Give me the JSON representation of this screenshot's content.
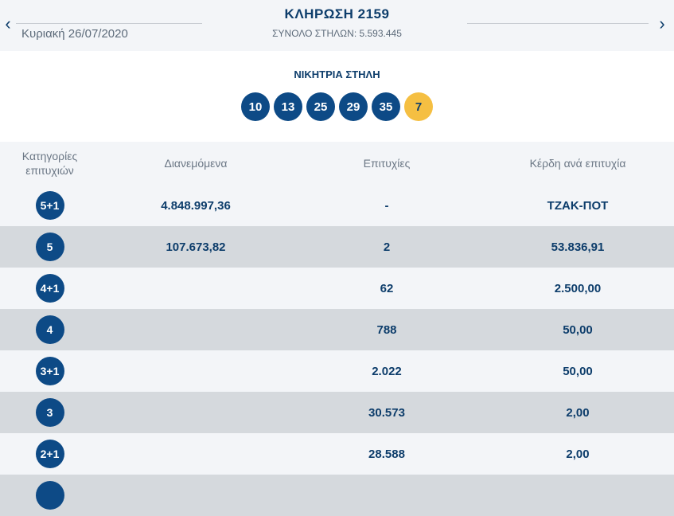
{
  "header": {
    "prev_icon": "chevron-left-icon",
    "next_icon": "chevron-right-icon",
    "prev_glyph": "‹",
    "next_glyph": "›",
    "date": "Κυριακή 26/07/2020",
    "title": "ΚΛΗΡΩΣΗ 2159",
    "total_columns": "ΣΥΝΟΛΟ ΣΤΗΛΩΝ: 5.593.445"
  },
  "winning": {
    "label": "ΝΙΚΗΤΡΙΑ ΣΤΗΛΗ",
    "numbers": [
      "10",
      "13",
      "25",
      "29",
      "35"
    ],
    "joker": "7"
  },
  "table": {
    "headers": {
      "category": "Κατηγορίες επιτυχιών",
      "distributed": "Διανεμόμενα",
      "winners": "Επιτυχίες",
      "prize": "Κέρδη ανά επιτυχία"
    },
    "rows": [
      {
        "category": "5+1",
        "distributed": "4.848.997,36",
        "winners": "-",
        "prize": "ΤΖΑΚ-ΠΟΤ"
      },
      {
        "category": "5",
        "distributed": "107.673,82",
        "winners": "2",
        "prize": "53.836,91"
      },
      {
        "category": "4+1",
        "distributed": "",
        "winners": "62",
        "prize": "2.500,00"
      },
      {
        "category": "4",
        "distributed": "",
        "winners": "788",
        "prize": "50,00"
      },
      {
        "category": "3+1",
        "distributed": "",
        "winners": "2.022",
        "prize": "50,00"
      },
      {
        "category": "3",
        "distributed": "",
        "winners": "30.573",
        "prize": "2,00"
      },
      {
        "category": "2+1",
        "distributed": "",
        "winners": "28.588",
        "prize": "2,00"
      },
      {
        "category": "",
        "distributed": "",
        "winners": "",
        "prize": ""
      }
    ]
  },
  "colors": {
    "primary": "#0d4a86",
    "joker": "#f5bf42",
    "row_light": "#f3f5f8",
    "row_dark": "#d5d9dd"
  }
}
